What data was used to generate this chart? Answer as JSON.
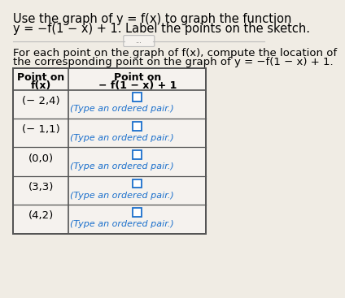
{
  "title_line1": "Use the graph of y = f(x) to graph the function",
  "title_line2": "y = −f(1 − x) + 1. Label the points on the sketch.",
  "divider_text": "...",
  "body_line1": "For each point on the graph of f(x), compute the location of",
  "body_line2": "the corresponding point on the graph of y = −f(1 − x) + 1.",
  "col1_header_line1": "Point on",
  "col1_header_line2": "f(x)",
  "col2_header_line1": "Point on",
  "col2_header_line2": "− f(1 − x) + 1",
  "points_fx": [
    "(− 2,4)",
    "(− 1,1)",
    "(0,0)",
    "(3,3)",
    "(4,2)"
  ],
  "answer_placeholder": "(Type an ordered pair.)",
  "bg_color": "#f0ece4",
  "table_bg": "#f5f2ee",
  "header_bg": "#f5f2ee",
  "border_color": "#555555",
  "text_color": "#000000",
  "answer_text_color": "#1a6fcc",
  "input_box_color": "#ffffff",
  "input_box_border": "#1a6fcc"
}
